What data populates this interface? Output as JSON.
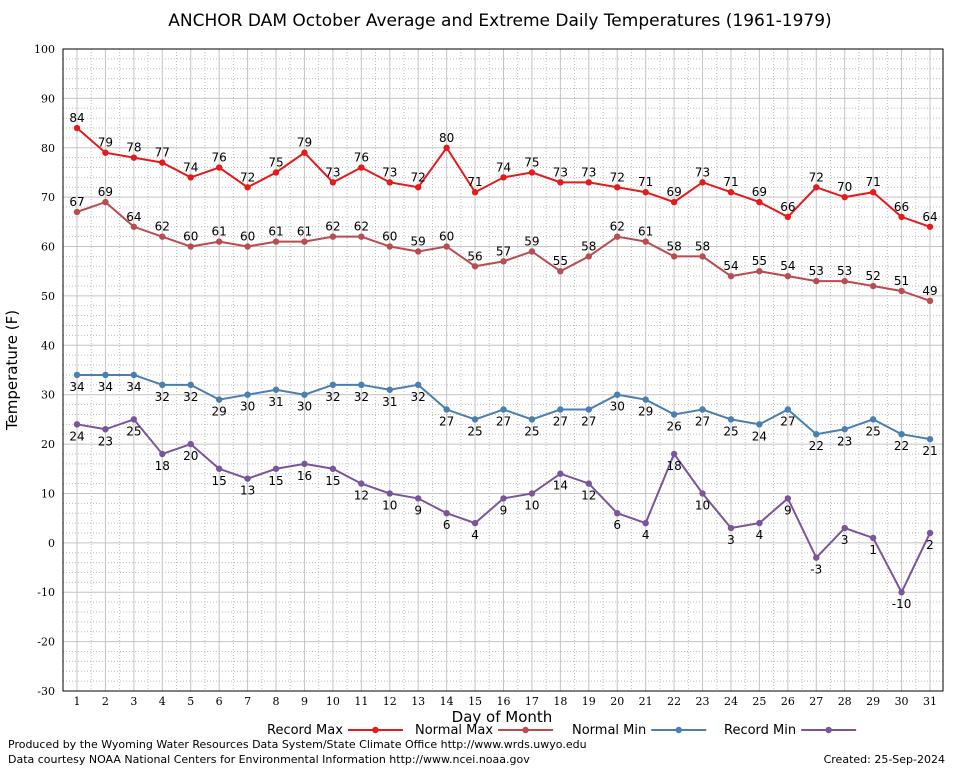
{
  "chart_data": {
    "type": "line",
    "title": "ANCHOR DAM October Average and Extreme Daily Temperatures (1961-1979)",
    "xlabel": "Day of Month",
    "ylabel": "Temperature (F)",
    "ylim": [
      -30,
      100
    ],
    "y_tick_step": 10,
    "x": [
      1,
      2,
      3,
      4,
      5,
      6,
      7,
      8,
      9,
      10,
      11,
      12,
      13,
      14,
      15,
      16,
      17,
      18,
      19,
      20,
      21,
      22,
      23,
      24,
      25,
      26,
      27,
      28,
      29,
      30,
      31
    ],
    "grid": true,
    "legend_position": "bottom",
    "series": [
      {
        "name": "Record Max",
        "color": "#e41a1c",
        "label_position": "above",
        "values": [
          84,
          79,
          78,
          77,
          74,
          76,
          72,
          75,
          79,
          73,
          76,
          73,
          72,
          80,
          71,
          74,
          75,
          73,
          73,
          72,
          71,
          69,
          73,
          71,
          69,
          66,
          72,
          70,
          71,
          66,
          64
        ]
      },
      {
        "name": "Normal Max",
        "color": "#b84c50",
        "label_position": "above",
        "values": [
          67,
          69,
          64,
          62,
          60,
          61,
          60,
          61,
          61,
          62,
          62,
          60,
          59,
          60,
          56,
          57,
          59,
          55,
          58,
          62,
          61,
          58,
          58,
          54,
          55,
          54,
          53,
          53,
          52,
          51,
          49
        ]
      },
      {
        "name": "Normal Min",
        "color": "#4a7fb0",
        "label_position": "below",
        "values": [
          34,
          34,
          34,
          32,
          32,
          29,
          30,
          31,
          30,
          32,
          32,
          31,
          32,
          27,
          25,
          27,
          25,
          27,
          27,
          30,
          29,
          26,
          27,
          25,
          24,
          27,
          22,
          23,
          25,
          22,
          21
        ]
      },
      {
        "name": "Record Min",
        "color": "#7a559b",
        "label_position": "below",
        "values": [
          24,
          23,
          25,
          18,
          20,
          15,
          13,
          15,
          16,
          15,
          12,
          10,
          9,
          6,
          4,
          9,
          10,
          14,
          12,
          6,
          4,
          18,
          10,
          3,
          4,
          9,
          -3,
          3,
          1,
          -10,
          2
        ]
      }
    ]
  },
  "footer": {
    "produced_by": "Produced by the Wyoming Water Resources Data System/State Climate Office http://www.wrds.uwyo.edu",
    "data_courtesy": "Data courtesy NOAA National Centers for Environmental Information http://www.ncei.noaa.gov",
    "created": "Created:  25-Sep-2024"
  }
}
